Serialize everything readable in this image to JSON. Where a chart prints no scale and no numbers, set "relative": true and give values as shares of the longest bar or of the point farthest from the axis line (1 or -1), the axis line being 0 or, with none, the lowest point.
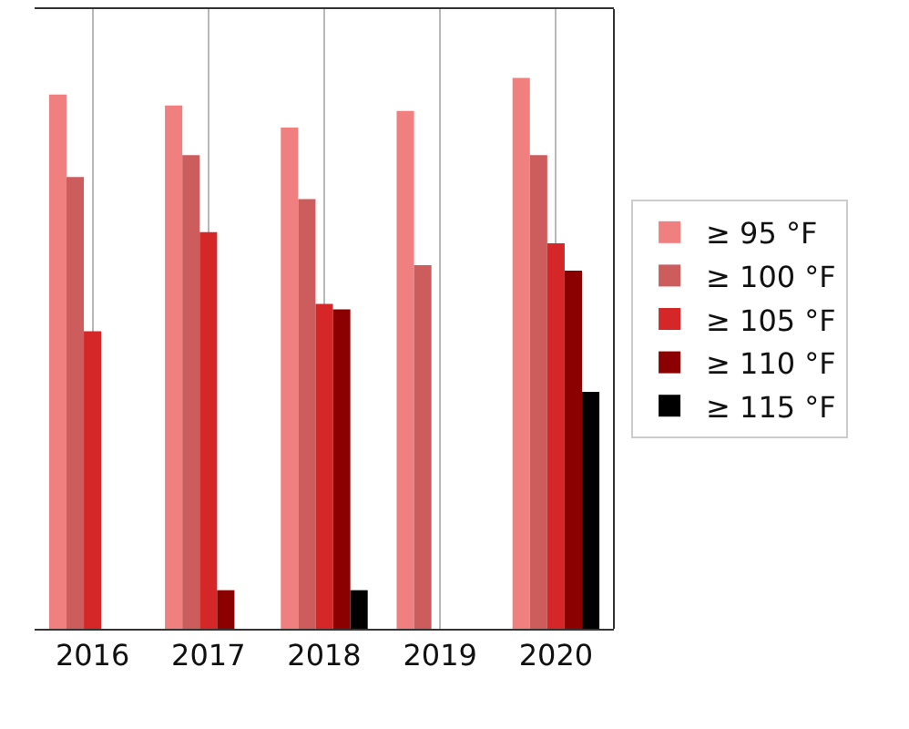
{
  "chart_data": {
    "type": "bar",
    "relative": true,
    "categories": [
      "2016",
      "2017",
      "2018",
      "2019",
      "2020"
    ],
    "series": [
      {
        "name": "≥ 95 °F",
        "color": "#f08080",
        "values": [
          0.97,
          0.95,
          0.91,
          0.94,
          1
        ]
      },
      {
        "name": "≥ 100 °F",
        "color": "#cd5c5c",
        "values": [
          0.82,
          0.86,
          0.78,
          0.66,
          0.86
        ]
      },
      {
        "name": "≥ 105 °F",
        "color": "#d62728",
        "values": [
          0.54,
          0.72,
          0.59,
          null,
          0.7
        ]
      },
      {
        "name": "≥ 110 °F",
        "color": "#8b0000",
        "values": [
          null,
          0.07,
          0.58,
          null,
          0.65
        ]
      },
      {
        "name": "≥ 115 °F",
        "color": "#000000",
        "values": [
          null,
          null,
          0.07,
          null,
          0.43
        ]
      }
    ],
    "grid": "x",
    "legend": "right"
  }
}
